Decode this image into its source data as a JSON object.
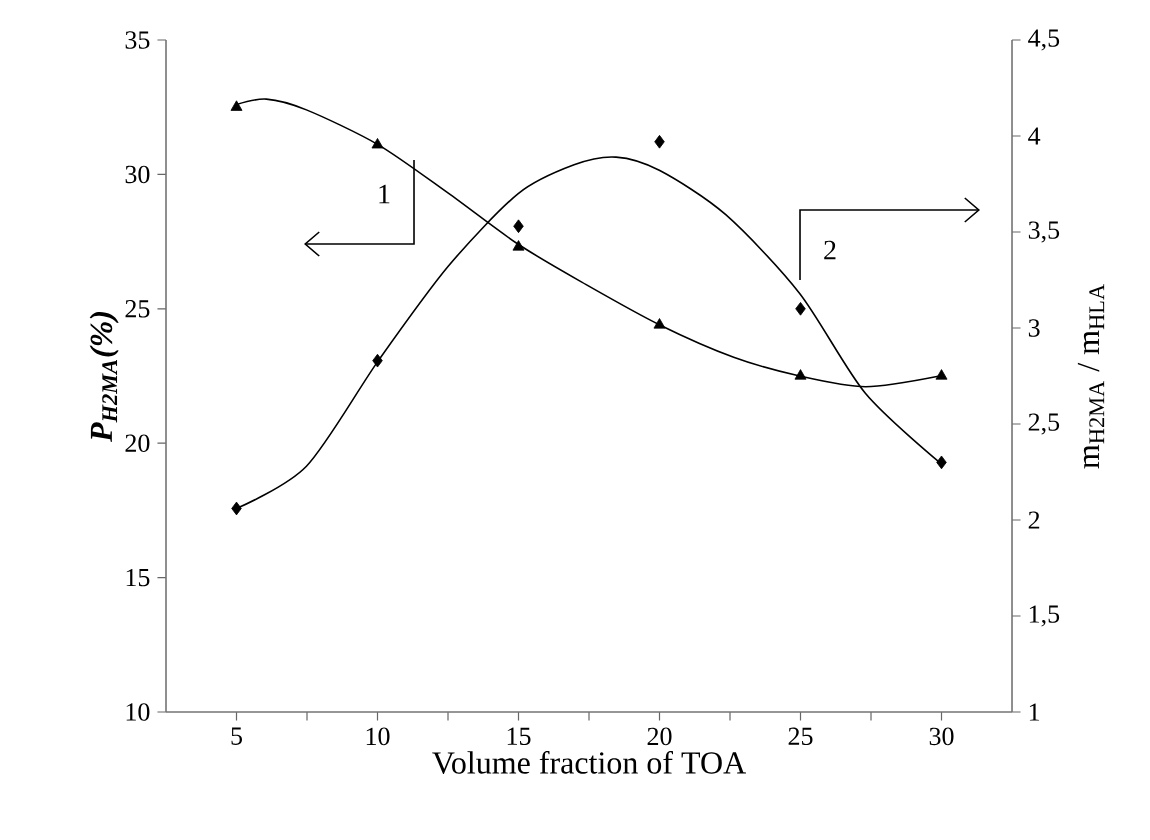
{
  "chart_data": {
    "type": "scatter",
    "xlabel": "Volume fraction of TOA",
    "ylabel": "P$_{H2MA}$(%)",
    "y2label": "m$_{H2MA}$ / m$_{HLA}$",
    "x": [
      5,
      10,
      15,
      20,
      25,
      30
    ],
    "xlim": [
      2.5,
      32.5
    ],
    "xticks": [
      5,
      {
        "value": 7.5,
        "label": null
      },
      10,
      {
        "value": 12.5,
        "label": null
      },
      15,
      {
        "value": 17.5,
        "label": null
      },
      20,
      {
        "value": 22.5,
        "label": null
      },
      25,
      {
        "value": 27.5,
        "label": null
      },
      30
    ],
    "ylim": [
      10,
      35
    ],
    "yticks": [
      10,
      15,
      20,
      25,
      30,
      35
    ],
    "y2lim": [
      1,
      4.5
    ],
    "y2ticks": [
      1,
      {
        "value": 1.5,
        "label": "1,5"
      },
      2,
      {
        "value": 2.5,
        "label": "2,5"
      },
      3,
      {
        "value": 3.5,
        "label": "3,5"
      },
      4,
      {
        "value": 4.5,
        "label": "4,5"
      }
    ],
    "series": [
      {
        "color": "#000000",
        "marker": "triangle",
        "values": [
          32.5,
          31.1,
          27.3,
          24.4,
          22.5,
          22.5
        ]
      },
      {
        "type": "line",
        "color": "#000000",
        "marker": "none",
        "x": [
          5,
          6.06,
          7.48,
          10.03,
          12.51,
          14.99,
          17.4,
          20.01,
          22.63,
          24.97,
          27.31,
          29.93
        ],
        "values": [
          32.6,
          32.8,
          32.4,
          31.1,
          29.3,
          27.4,
          25.9,
          24.4,
          23.2,
          22.5,
          22.1,
          22.5
        ]
      },
      {
        "axis": "y2",
        "color": "#000000",
        "marker": "diamond",
        "values": [
          2.06,
          2.83,
          3.53,
          3.97,
          3.1,
          2.3
        ]
      },
      {
        "type": "line",
        "axis": "y2",
        "color": "#000000",
        "marker": "none",
        "x": [
          5,
          7.48,
          10.03,
          12.5,
          14.99,
          16.97,
          18.46,
          20.01,
          22.35,
          24.97,
          27.3,
          29.93
        ],
        "values": [
          2.06,
          2.28,
          2.83,
          3.32,
          3.7,
          3.85,
          3.89,
          3.82,
          3.59,
          3.18,
          2.66,
          2.3
        ]
      }
    ],
    "annotations": [
      "1",
      "2"
    ],
    "grid": false
  }
}
